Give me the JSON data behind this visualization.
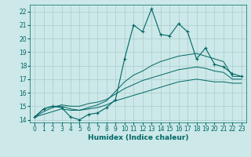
{
  "xlabel": "Humidex (Indice chaleur)",
  "x_values": [
    0,
    1,
    2,
    3,
    4,
    5,
    6,
    7,
    8,
    9,
    10,
    11,
    12,
    13,
    14,
    15,
    16,
    17,
    18,
    19,
    20,
    21,
    22,
    23
  ],
  "main_line": [
    14.2,
    14.8,
    15.0,
    14.9,
    14.2,
    14.0,
    14.4,
    14.5,
    14.9,
    15.5,
    18.5,
    21.0,
    20.5,
    22.2,
    20.3,
    20.2,
    21.1,
    20.5,
    18.5,
    19.3,
    18.1,
    17.9,
    17.4,
    17.2
  ],
  "line2": [
    14.2,
    14.8,
    15.0,
    15.0,
    14.8,
    14.7,
    14.9,
    15.1,
    15.4,
    16.1,
    16.8,
    17.3,
    17.6,
    18.0,
    18.3,
    18.5,
    18.7,
    18.8,
    18.9,
    18.7,
    18.5,
    18.3,
    17.2,
    17.2
  ],
  "line3": [
    14.2,
    14.6,
    14.9,
    15.1,
    15.0,
    15.0,
    15.2,
    15.3,
    15.5,
    15.9,
    16.3,
    16.6,
    16.9,
    17.1,
    17.3,
    17.5,
    17.7,
    17.8,
    17.9,
    17.8,
    17.6,
    17.5,
    17.0,
    17.0
  ],
  "line4": [
    14.2,
    14.4,
    14.6,
    14.8,
    14.7,
    14.7,
    14.8,
    14.9,
    15.1,
    15.4,
    15.6,
    15.8,
    16.0,
    16.2,
    16.4,
    16.6,
    16.8,
    16.9,
    17.0,
    16.9,
    16.8,
    16.8,
    16.7,
    16.7
  ],
  "bg_color": "#cce8e8",
  "grid_color": "#aacccc",
  "line_color": "#006666",
  "xlim": [
    -0.5,
    23.5
  ],
  "ylim": [
    13.8,
    22.5
  ],
  "yticks": [
    14,
    15,
    16,
    17,
    18,
    19,
    20,
    21,
    22
  ]
}
